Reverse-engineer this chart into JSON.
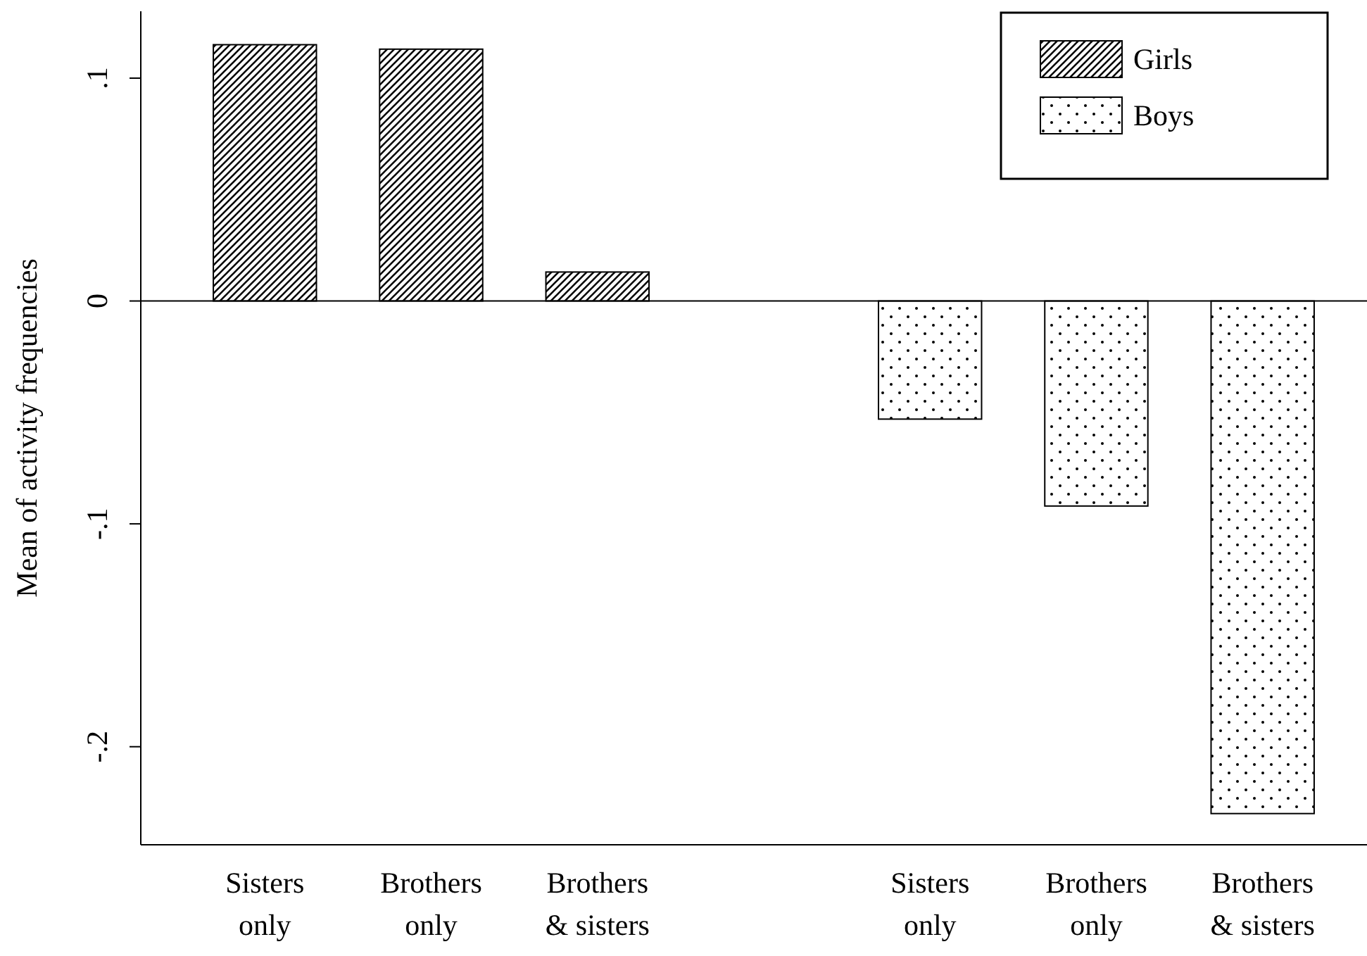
{
  "chart_data": {
    "type": "bar",
    "ylabel": "Mean of activity frequencies",
    "categories": [
      "Sisters only",
      "Brothers only",
      "Brothers & sisters",
      null,
      "Sisters only",
      "Brothers only",
      "Brothers & sisters"
    ],
    "series": [
      {
        "name": "Girls",
        "color": "#000000",
        "values": [
          0.115,
          0.113,
          0.013,
          null,
          null,
          null,
          null
        ]
      },
      {
        "name": "Boys",
        "color": "#000000",
        "values": [
          null,
          null,
          null,
          null,
          -0.053,
          -0.092,
          -0.23
        ]
      }
    ],
    "ylim": [
      -0.244,
      0.13
    ],
    "yticks": [
      {
        "value": -0.2,
        "label": "-.2"
      },
      {
        "value": -0.1,
        "label": "-.1"
      },
      0,
      {
        "value": 0.1,
        "label": ".1"
      }
    ],
    "ref_lines": [
      {
        "axis": "y",
        "value": 0
      }
    ],
    "legend": "top right"
  }
}
